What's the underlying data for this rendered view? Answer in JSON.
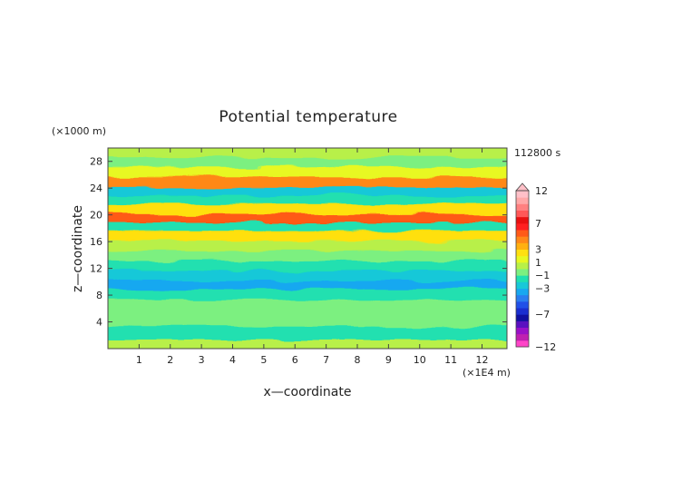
{
  "chart_data": {
    "type": "heatmap",
    "title": "Potential temperature",
    "xlabel": "x—coordinate",
    "ylabel": "z—coordinate",
    "x_unit": "(×1E4 m)",
    "y_unit": "(×1000 m)",
    "time_label": "112800 s",
    "xlim": [
      0,
      12.8
    ],
    "ylim": [
      0,
      30
    ],
    "x_ticks": [
      1,
      2,
      3,
      4,
      5,
      6,
      7,
      8,
      9,
      10,
      11,
      12
    ],
    "y_ticks": [
      4,
      8,
      12,
      16,
      20,
      24,
      28
    ],
    "colorbar": {
      "levels": [
        -12,
        -11,
        -10,
        -9,
        -8,
        -7,
        -6,
        -5,
        -4,
        -3,
        -2,
        -1,
        0,
        1,
        2,
        3,
        4,
        5,
        6,
        7,
        8,
        9,
        10,
        11,
        12
      ],
      "tick_labels": [
        "12",
        "7",
        "3",
        "1",
        "−1",
        "−3",
        "−7",
        "−12"
      ],
      "tick_values": [
        12,
        7,
        3,
        1,
        -1,
        -3,
        -7,
        -12
      ],
      "colors": [
        "#ff44c8",
        "#c020b0",
        "#9a10c8",
        "#5a10c0",
        "#1010a0",
        "#1a2ed0",
        "#2050e8",
        "#2a7ef0",
        "#18a8f0",
        "#18c8d8",
        "#20e0b0",
        "#7cf080",
        "#b8f048",
        "#e8f820",
        "#ffe010",
        "#ffb010",
        "#ff8818",
        "#ff5a18",
        "#ff2020",
        "#e81010",
        "#ff5858",
        "#ff8080",
        "#ffa8a8",
        "#ffc0c8"
      ]
    },
    "bands": [
      {
        "z": 0.5,
        "value": 0.0
      },
      {
        "z": 2.5,
        "value": -1.5
      },
      {
        "z": 4.5,
        "value": -0.5
      },
      {
        "z": 6.5,
        "value": -0.8
      },
      {
        "z": 8.5,
        "value": -1.8
      },
      {
        "z": 9.5,
        "value": -3.2
      },
      {
        "z": 11.0,
        "value": -3.0
      },
      {
        "z": 12.5,
        "value": -1.8
      },
      {
        "z": 14.0,
        "value": -1.0
      },
      {
        "z": 15.5,
        "value": 0.5
      },
      {
        "z": 17.0,
        "value": 2.5
      },
      {
        "z": 18.5,
        "value": -2.0
      },
      {
        "z": 19.5,
        "value": 5.0
      },
      {
        "z": 21.0,
        "value": 2.0
      },
      {
        "z": 22.5,
        "value": -1.5
      },
      {
        "z": 23.5,
        "value": -3.0
      },
      {
        "z": 25.0,
        "value": 4.0
      },
      {
        "z": 26.5,
        "value": 1.0
      },
      {
        "z": 28.0,
        "value": -0.5
      },
      {
        "z": 29.5,
        "value": 0.5
      }
    ]
  }
}
